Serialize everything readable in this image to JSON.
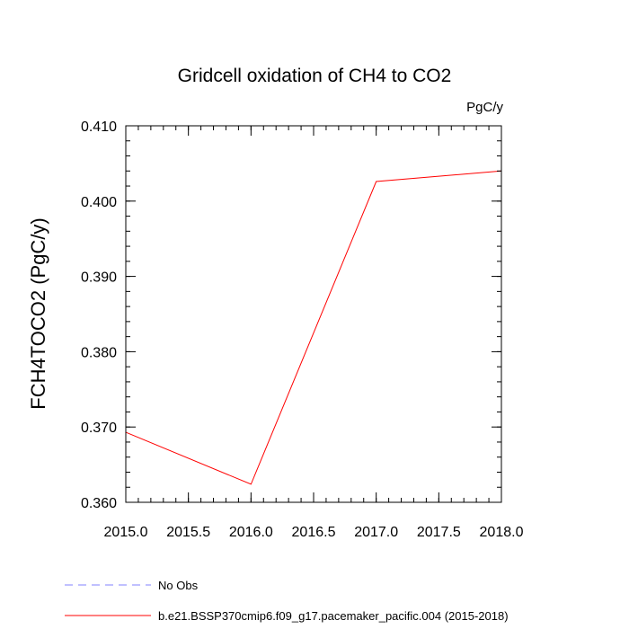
{
  "chart_data": {
    "type": "line",
    "title": "Gridcell oxidation of CH4 to CO2",
    "units_label": "PgC/y",
    "xlabel": "",
    "ylabel": "FCH4TOCO2  (PgC/y)",
    "xlim": [
      2015.0,
      2018.0
    ],
    "ylim": [
      0.36,
      0.41
    ],
    "x_ticks": [
      2015.0,
      2015.5,
      2016.0,
      2016.5,
      2017.0,
      2017.5,
      2018.0
    ],
    "x_tick_labels": [
      "2015.0",
      "2015.5",
      "2016.0",
      "2016.5",
      "2017.0",
      "2017.5",
      "2018.0"
    ],
    "y_ticks": [
      0.36,
      0.37,
      0.38,
      0.39,
      0.4,
      0.41
    ],
    "y_tick_labels": [
      "0.360",
      "0.370",
      "0.380",
      "0.390",
      "0.400",
      "0.410"
    ],
    "grid": false,
    "legend_position": "bottom",
    "series": [
      {
        "name": "b.e21.BSSP370cmip6.f09_g17.pacemaker_pacific.004 (2015-2018)",
        "color": "#ff0000",
        "dash": "solid",
        "x": [
          2015.0,
          2016.0,
          2017.0,
          2018.0
        ],
        "y": [
          0.3693,
          0.3624,
          0.4026,
          0.404
        ]
      }
    ],
    "legend": [
      {
        "label": "No Obs",
        "color": "#8080ff",
        "dash": "dashed"
      },
      {
        "label": "b.e21.BSSP370cmip6.f09_g17.pacemaker_pacific.004 (2015-2018)",
        "color": "#ff0000",
        "dash": "solid"
      }
    ]
  }
}
